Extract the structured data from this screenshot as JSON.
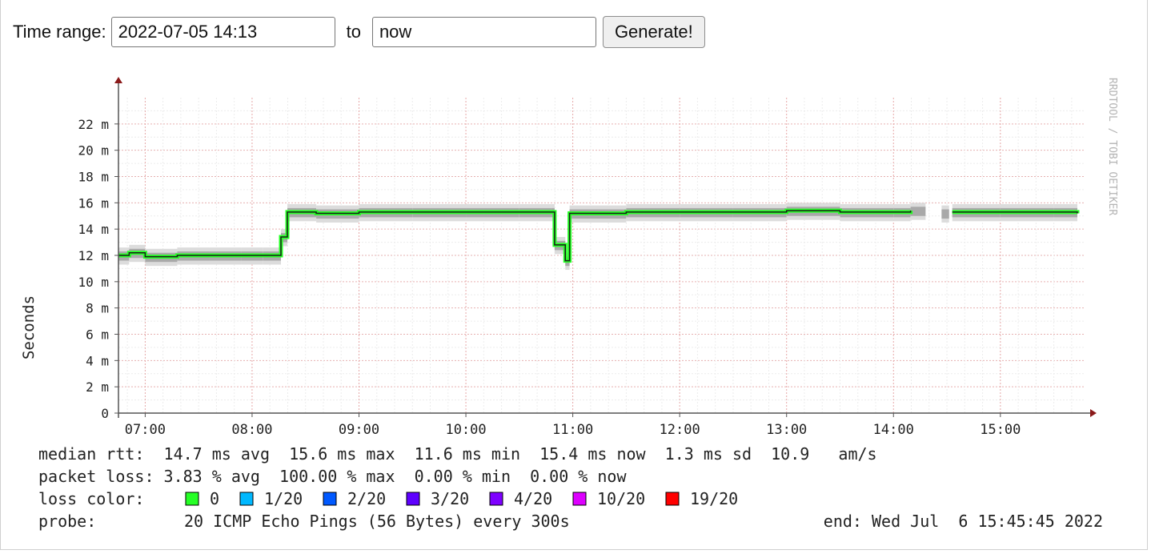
{
  "form": {
    "time_range_label": "Time range:",
    "start_value": "2022-07-05 14:13",
    "to_label": "to",
    "end_value": "now",
    "generate_label": "Generate!"
  },
  "chart_data": {
    "type": "line",
    "ylabel": "Seconds",
    "watermark": "RRDTOOL / TOBI OETIKER",
    "y_ticks": [
      "0",
      "2 m",
      "4 m",
      "6 m",
      "8 m",
      "10 m",
      "12 m",
      "14 m",
      "16 m",
      "18 m",
      "20 m",
      "22 m"
    ],
    "ylim_ms": [
      0,
      24
    ],
    "x_ticks": [
      "07:00",
      "08:00",
      "09:00",
      "10:00",
      "11:00",
      "12:00",
      "13:00",
      "14:00",
      "15:00"
    ],
    "xlim_hours": [
      6.75,
      15.78
    ],
    "series": [
      {
        "name": "median rtt",
        "unit": "ms",
        "points": [
          [
            6.75,
            12.0
          ],
          [
            6.85,
            12.2
          ],
          [
            7.0,
            11.9
          ],
          [
            7.3,
            12.0
          ],
          [
            7.6,
            12.0
          ],
          [
            7.9,
            12.0
          ],
          [
            8.1,
            12.0
          ],
          [
            8.27,
            13.4
          ],
          [
            8.33,
            15.3
          ],
          [
            8.6,
            15.2
          ],
          [
            9.0,
            15.3
          ],
          [
            9.5,
            15.3
          ],
          [
            10.0,
            15.3
          ],
          [
            10.5,
            15.3
          ],
          [
            10.8,
            15.3
          ],
          [
            10.83,
            12.8
          ],
          [
            10.93,
            11.6
          ],
          [
            10.97,
            15.2
          ],
          [
            11.5,
            15.3
          ],
          [
            12.0,
            15.3
          ],
          [
            12.5,
            15.3
          ],
          [
            13.0,
            15.4
          ],
          [
            13.5,
            15.3
          ],
          [
            14.0,
            15.3
          ],
          [
            14.16,
            15.4
          ],
          [
            14.3,
            null
          ],
          [
            14.45,
            15.2
          ],
          [
            14.52,
            null
          ],
          [
            14.55,
            15.3
          ],
          [
            15.0,
            15.3
          ],
          [
            15.5,
            15.3
          ],
          [
            15.72,
            15.2
          ]
        ]
      }
    ],
    "legend": {
      "median_rtt": "median rtt:  14.7 ms avg  15.6 ms max  11.6 ms min  15.4 ms now  1.3 ms sd  10.9   am/s",
      "packet_loss": "packet loss: 3.83 % avg  100.00 % max  0.00 % min  0.00 % now",
      "loss_color_label": "loss color:",
      "loss_colors": [
        {
          "label": "0",
          "color": "#26ff26"
        },
        {
          "label": "1/20",
          "color": "#00b8ff"
        },
        {
          "label": "2/20",
          "color": "#0059ff"
        },
        {
          "label": "3/20",
          "color": "#5e00ff"
        },
        {
          "label": "4/20",
          "color": "#7e00ff"
        },
        {
          "label": "10/20",
          "color": "#dd00ff"
        },
        {
          "label": "19/20",
          "color": "#ff0000"
        }
      ],
      "probe_label": "probe:",
      "probe_text": "20 ICMP Echo Pings (56 Bytes) every 300s",
      "end_text": "end: Wed Jul  6 15:45:45 2022"
    }
  }
}
